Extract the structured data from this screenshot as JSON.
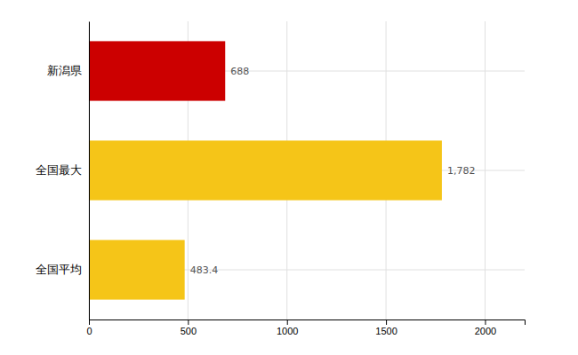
{
  "chart_data": {
    "type": "bar",
    "orientation": "horizontal",
    "categories": [
      "全国平均",
      "全国最大",
      "新潟県"
    ],
    "values": [
      483.4,
      1782,
      688
    ],
    "value_labels": [
      "483.4",
      "1,782",
      "688"
    ],
    "data_labels": true,
    "colors": [
      "#f5c518",
      "#f5c518",
      "#cc0000"
    ],
    "xlim": [
      0,
      2200
    ],
    "xticks": [
      0,
      500,
      1000,
      1500,
      2000
    ],
    "grid": true
  }
}
